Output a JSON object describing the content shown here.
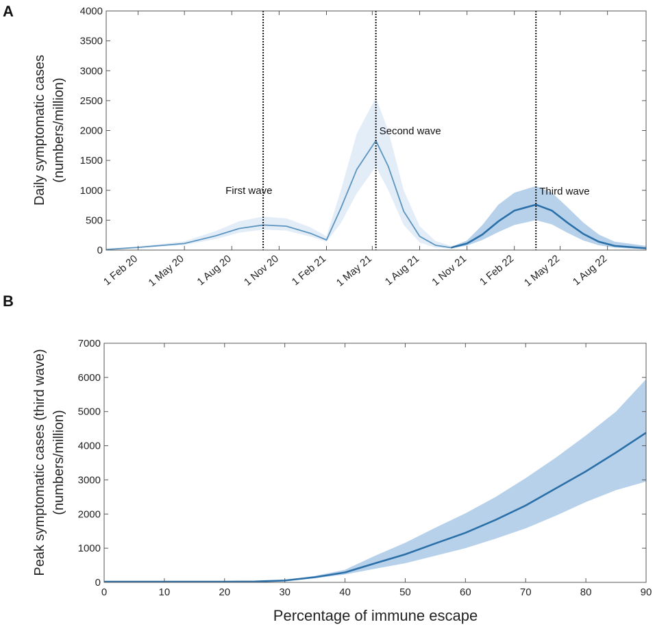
{
  "chart_data": [
    {
      "panel": "A",
      "type": "line",
      "ylabel_line1": "Daily symptomatic cases",
      "ylabel_line2": "(numbers/million)",
      "ylim": [
        0,
        4000
      ],
      "yticks": [
        0,
        500,
        1000,
        1500,
        2000,
        2500,
        3000,
        3500,
        4000
      ],
      "xrange": [
        "2019-12-01",
        "2022-10-15"
      ],
      "xticks": [
        {
          "date": "2020-02-01",
          "label": "1 Feb 20"
        },
        {
          "date": "2020-05-01",
          "label": "1 May 20"
        },
        {
          "date": "2020-08-01",
          "label": "1 Aug 20"
        },
        {
          "date": "2020-11-01",
          "label": "1 Nov 20"
        },
        {
          "date": "2021-02-01",
          "label": "1 Feb 21"
        },
        {
          "date": "2021-05-01",
          "label": "1 May 21"
        },
        {
          "date": "2021-08-01",
          "label": "1 Aug 21"
        },
        {
          "date": "2021-11-01",
          "label": "1 Nov 21"
        },
        {
          "date": "2022-02-01",
          "label": "1 Feb 22"
        },
        {
          "date": "2022-05-01",
          "label": "1 May 22"
        },
        {
          "date": "2022-08-01",
          "label": "1 Aug 22"
        }
      ],
      "wave_markers": [
        {
          "date": "2020-10-01",
          "label": "First wave"
        },
        {
          "date": "2021-05-08",
          "label": "Second wave"
        },
        {
          "date": "2022-03-15",
          "label": "Third wave"
        }
      ],
      "series": [
        {
          "color": "#5b94bf",
          "band_color": "#e3edf8",
          "points": [
            {
              "date": "2019-12-01",
              "y": 10,
              "lo": 5,
              "hi": 20
            },
            {
              "date": "2020-02-01",
              "y": 45,
              "lo": 35,
              "hi": 60
            },
            {
              "date": "2020-05-01",
              "y": 110,
              "lo": 85,
              "hi": 145
            },
            {
              "date": "2020-07-01",
              "y": 240,
              "lo": 185,
              "hi": 320
            },
            {
              "date": "2020-08-15",
              "y": 360,
              "lo": 290,
              "hi": 480
            },
            {
              "date": "2020-10-01",
              "y": 420,
              "lo": 340,
              "hi": 560
            },
            {
              "date": "2020-11-15",
              "y": 400,
              "lo": 325,
              "hi": 530
            },
            {
              "date": "2021-01-01",
              "y": 280,
              "lo": 225,
              "hi": 380
            },
            {
              "date": "2021-02-01",
              "y": 170,
              "lo": 140,
              "hi": 230
            },
            {
              "date": "2021-03-01",
              "y": 700,
              "lo": 450,
              "hi": 1000
            },
            {
              "date": "2021-04-01",
              "y": 1350,
              "lo": 950,
              "hi": 1950
            },
            {
              "date": "2021-05-08",
              "y": 1830,
              "lo": 1400,
              "hi": 2550
            },
            {
              "date": "2021-06-01",
              "y": 1400,
              "lo": 1000,
              "hi": 2000
            },
            {
              "date": "2021-07-01",
              "y": 650,
              "lo": 420,
              "hi": 1000
            },
            {
              "date": "2021-08-01",
              "y": 230,
              "lo": 130,
              "hi": 400
            },
            {
              "date": "2021-09-01",
              "y": 80,
              "lo": 40,
              "hi": 150
            },
            {
              "date": "2021-10-01",
              "y": 40,
              "lo": 25,
              "hi": 70
            }
          ]
        },
        {
          "color": "#2a6fa8",
          "band_color": "#b7d1ea",
          "points": [
            {
              "date": "2021-10-01",
              "y": 40,
              "lo": 30,
              "hi": 55
            },
            {
              "date": "2021-11-01",
              "y": 110,
              "lo": 75,
              "hi": 160
            },
            {
              "date": "2021-12-01",
              "y": 260,
              "lo": 170,
              "hi": 420
            },
            {
              "date": "2022-01-01",
              "y": 480,
              "lo": 300,
              "hi": 760
            },
            {
              "date": "2022-02-01",
              "y": 660,
              "lo": 420,
              "hi": 960
            },
            {
              "date": "2022-03-15",
              "y": 760,
              "lo": 500,
              "hi": 1070
            },
            {
              "date": "2022-04-15",
              "y": 660,
              "lo": 430,
              "hi": 960
            },
            {
              "date": "2022-05-15",
              "y": 460,
              "lo": 290,
              "hi": 720
            },
            {
              "date": "2022-06-15",
              "y": 270,
              "lo": 160,
              "hi": 460
            },
            {
              "date": "2022-07-15",
              "y": 140,
              "lo": 80,
              "hi": 260
            },
            {
              "date": "2022-08-15",
              "y": 70,
              "lo": 40,
              "hi": 140
            },
            {
              "date": "2022-10-15",
              "y": 30,
              "lo": 15,
              "hi": 70
            }
          ]
        }
      ]
    },
    {
      "panel": "B",
      "type": "line",
      "xlabel": "Percentage of immune escape",
      "ylabel_line1": "Peak symptomatic cases (third wave)",
      "ylabel_line2": "(numbers/million)",
      "xlim": [
        0,
        90
      ],
      "ylim": [
        0,
        7000
      ],
      "xticks": [
        0,
        10,
        20,
        30,
        40,
        50,
        60,
        70,
        80,
        90
      ],
      "yticks": [
        0,
        1000,
        2000,
        3000,
        4000,
        5000,
        6000,
        7000
      ],
      "series": [
        {
          "color": "#2a6fa8",
          "band_color": "#b7d1ea",
          "x": [
            0,
            10,
            20,
            25,
            30,
            35,
            40,
            45,
            50,
            55,
            60,
            65,
            70,
            75,
            80,
            85,
            90
          ],
          "y": [
            20,
            20,
            20,
            25,
            55,
            150,
            290,
            560,
            820,
            1140,
            1450,
            1830,
            2250,
            2750,
            3250,
            3800,
            4380
          ],
          "lo": [
            15,
            15,
            15,
            20,
            45,
            120,
            230,
            400,
            560,
            780,
            1000,
            1280,
            1580,
            1950,
            2350,
            2700,
            2950
          ],
          "hi": [
            25,
            25,
            25,
            30,
            65,
            190,
            370,
            780,
            1160,
            1600,
            2020,
            2500,
            3050,
            3650,
            4300,
            5000,
            5950
          ]
        }
      ]
    }
  ]
}
